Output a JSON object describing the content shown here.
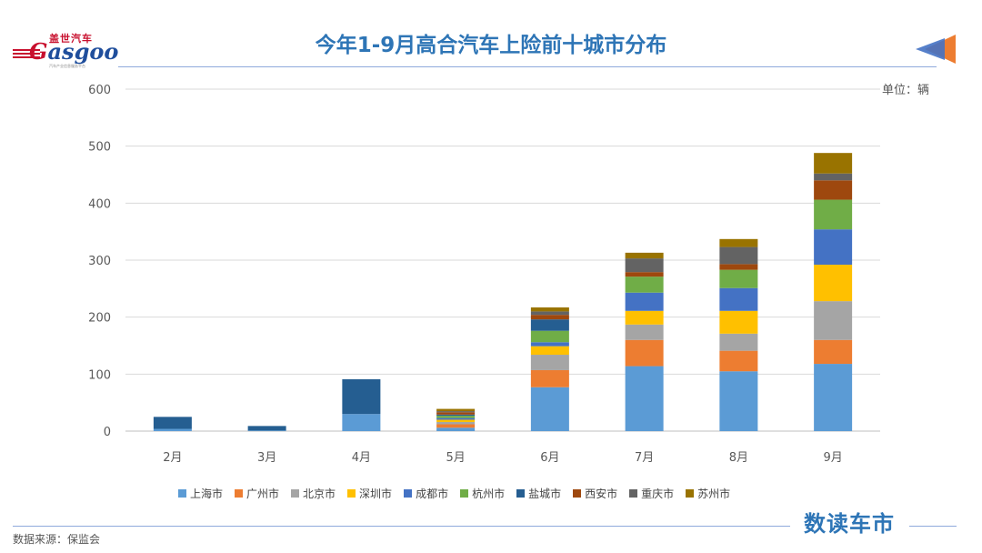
{
  "header": {
    "title": "今年1-9月高合汽车上险前十城市分布",
    "unit": "单位：辆"
  },
  "logo": {
    "top_text": "盖世汽车",
    "word": "asgoo",
    "g": "G",
    "sub": "汽车产业信息服务平台"
  },
  "footer": {
    "source": "数据来源：保监会",
    "brand": "数读车市"
  },
  "colors": [
    "#5b9bd5",
    "#ed7d31",
    "#a5a5a5",
    "#ffc000",
    "#4472c4",
    "#70ad47",
    "#255e91",
    "#9e480e",
    "#636363",
    "#997300"
  ],
  "chart_data": {
    "type": "bar",
    "stacked": true,
    "categories": [
      "2月",
      "3月",
      "4月",
      "5月",
      "6月",
      "7月",
      "8月",
      "9月"
    ],
    "ylim": [
      0,
      600
    ],
    "yticks": [
      0,
      100,
      200,
      300,
      400,
      500,
      600
    ],
    "grid": true,
    "legend_position": "bottom",
    "series": [
      {
        "name": "上海市",
        "values": [
          4,
          1,
          30,
          6,
          77,
          114,
          105,
          118
        ]
      },
      {
        "name": "广州市",
        "values": [
          0,
          0,
          0,
          6,
          30,
          46,
          36,
          42
        ]
      },
      {
        "name": "北京市",
        "values": [
          0,
          0,
          0,
          4,
          27,
          27,
          30,
          68
        ]
      },
      {
        "name": "深圳市",
        "values": [
          0,
          0,
          0,
          4,
          15,
          24,
          40,
          64
        ]
      },
      {
        "name": "成都市",
        "values": [
          0,
          0,
          0,
          3,
          7,
          32,
          40,
          62
        ]
      },
      {
        "name": "杭州市",
        "values": [
          0,
          0,
          0,
          4,
          20,
          28,
          32,
          52
        ]
      },
      {
        "name": "盐城市",
        "values": [
          21,
          8,
          61,
          2,
          20,
          0,
          0,
          0
        ]
      },
      {
        "name": "西安市",
        "values": [
          0,
          0,
          0,
          4,
          8,
          8,
          10,
          34
        ]
      },
      {
        "name": "重庆市",
        "values": [
          0,
          0,
          0,
          2,
          6,
          24,
          30,
          12
        ]
      },
      {
        "name": "苏州市",
        "values": [
          0,
          0,
          0,
          4,
          7,
          10,
          14,
          36
        ]
      }
    ]
  }
}
